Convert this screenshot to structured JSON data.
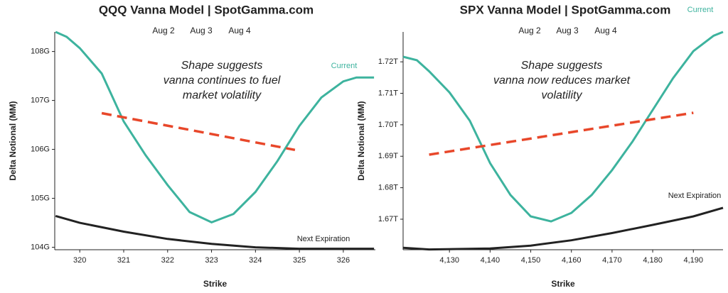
{
  "chart_data": [
    {
      "type": "line",
      "title": "QQQ Vanna Model | SpotGamma.com",
      "dates": [
        "Aug 2",
        "Aug 3",
        "Aug 4"
      ],
      "annotation": [
        "Shape suggests",
        "vanna continues to fuel",
        "market volatility"
      ],
      "xlabel": "Strike",
      "ylabel": "Delta Notional (MM)",
      "xlim": [
        319.43,
        326.73
      ],
      "ylim": [
        103.95,
        108.4
      ],
      "xticks": [
        320,
        321,
        322,
        323,
        324,
        325,
        326
      ],
      "yticks": [
        {
          "value": 104,
          "label": "104G"
        },
        {
          "value": 105,
          "label": "105G"
        },
        {
          "value": 106,
          "label": "106G"
        },
        {
          "value": 107,
          "label": "107G"
        },
        {
          "value": 108,
          "label": "108G"
        }
      ],
      "series": [
        {
          "name": "Current",
          "color": "#3db39e",
          "x": [
            319.45,
            319.7,
            320,
            320.5,
            321,
            321.5,
            322,
            322.5,
            323,
            323.5,
            324,
            324.5,
            325,
            325.5,
            326,
            326.3,
            326.7
          ],
          "values": [
            108.4,
            108.3,
            108.07,
            107.55,
            106.57,
            105.88,
            105.27,
            104.72,
            104.51,
            104.68,
            105.13,
            105.76,
            106.48,
            107.06,
            107.39,
            107.47,
            107.47
          ]
        },
        {
          "name": "Next Expiration",
          "color": "#222222",
          "x": [
            319.45,
            320,
            321,
            322,
            323,
            324,
            325,
            326.7
          ],
          "values": [
            104.64,
            104.5,
            104.32,
            104.17,
            104.07,
            104.0,
            103.97,
            103.97
          ]
        },
        {
          "color": "#e8472a",
          "dashed": true,
          "x": [
            320.5,
            324.9
          ],
          "values": [
            106.74,
            105.99
          ]
        }
      ]
    },
    {
      "type": "line",
      "title": "SPX Vanna Model | SpotGamma.com",
      "dates": [
        "Aug 2",
        "Aug 3",
        "Aug 4"
      ],
      "annotation": [
        "Shape suggests",
        "vanna now reduces market",
        "volatility"
      ],
      "xlabel": "Strike",
      "ylabel": "Delta Notional (MM)",
      "xlim": [
        4118.6,
        4197.3
      ],
      "ylim": [
        1.6603,
        1.7295
      ],
      "xticks": [
        {
          "value": 4130,
          "label": "4,130"
        },
        {
          "value": 4140,
          "label": "4,140"
        },
        {
          "value": 4150,
          "label": "4,150"
        },
        {
          "value": 4160,
          "label": "4,160"
        },
        {
          "value": 4170,
          "label": "4,170"
        },
        {
          "value": 4180,
          "label": "4,180"
        },
        {
          "value": 4190,
          "label": "4,190"
        }
      ],
      "yticks": [
        {
          "value": 1.67,
          "label": "1.67T"
        },
        {
          "value": 1.68,
          "label": "1.68T"
        },
        {
          "value": 1.69,
          "label": "1.69T"
        },
        {
          "value": 1.7,
          "label": "1.70T"
        },
        {
          "value": 1.71,
          "label": "1.71T"
        },
        {
          "value": 1.72,
          "label": "1.72T"
        }
      ],
      "series": [
        {
          "name": "Current",
          "color": "#3db39e",
          "x": [
            4118.6,
            4122,
            4125,
            4130,
            4135,
            4140,
            4145,
            4150,
            4155,
            4160,
            4165,
            4170,
            4175,
            4180,
            4185,
            4190,
            4195,
            4197.3
          ],
          "values": [
            1.7216,
            1.7205,
            1.717,
            1.7103,
            1.7013,
            1.6878,
            1.6777,
            1.6709,
            1.6693,
            1.672,
            1.6777,
            1.6856,
            1.6946,
            1.7047,
            1.7148,
            1.7234,
            1.7283,
            1.7295
          ]
        },
        {
          "name": "Next Expiration",
          "color": "#222222",
          "x": [
            4118.6,
            4125,
            4140,
            4150,
            4160,
            4170,
            4180,
            4190,
            4197.3
          ],
          "values": [
            1.6609,
            1.6604,
            1.6607,
            1.6616,
            1.6633,
            1.6656,
            1.6682,
            1.6709,
            1.6736
          ]
        },
        {
          "color": "#e8472a",
          "dashed": true,
          "x": [
            4125,
            4190
          ],
          "values": [
            1.6905,
            1.7038
          ]
        }
      ]
    }
  ]
}
